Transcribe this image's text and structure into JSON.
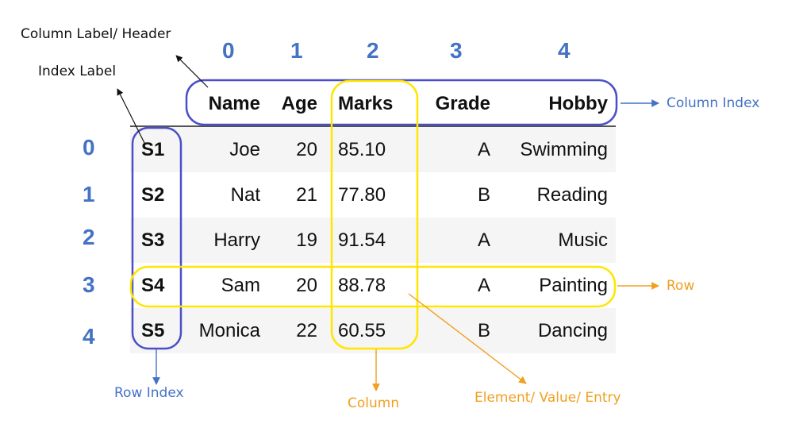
{
  "labels": {
    "column_label": "Column Label/ Header",
    "index_label": "Index Label",
    "column_index": "Column Index",
    "row": "Row",
    "row_index": "Row Index",
    "column": "Column",
    "element": "Element/ Value/ Entry"
  },
  "column_positions": [
    "0",
    "1",
    "2",
    "3",
    "4"
  ],
  "row_positions": [
    "0",
    "1",
    "2",
    "3",
    "4"
  ],
  "table": {
    "columns": [
      "Name",
      "Age",
      "Marks",
      "Grade",
      "Hobby"
    ],
    "rows": [
      {
        "index": "S1",
        "cells": [
          "Joe",
          "20",
          "85.10",
          "A",
          "Swimming"
        ]
      },
      {
        "index": "S2",
        "cells": [
          "Nat",
          "21",
          "77.80",
          "B",
          "Reading"
        ]
      },
      {
        "index": "S3",
        "cells": [
          "Harry",
          "19",
          "91.54",
          "A",
          "Music"
        ]
      },
      {
        "index": "S4",
        "cells": [
          "Sam",
          "20",
          "88.78",
          "A",
          "Painting"
        ]
      },
      {
        "index": "S5",
        "cells": [
          "Monica",
          "22",
          "60.55",
          "B",
          "Dancing"
        ]
      }
    ]
  },
  "colors": {
    "blue_annotation": "#4472c4",
    "yellow_highlight": "#ffe600",
    "orange_annotation": "#f0a020",
    "row_stripe": "#f5f5f5"
  }
}
